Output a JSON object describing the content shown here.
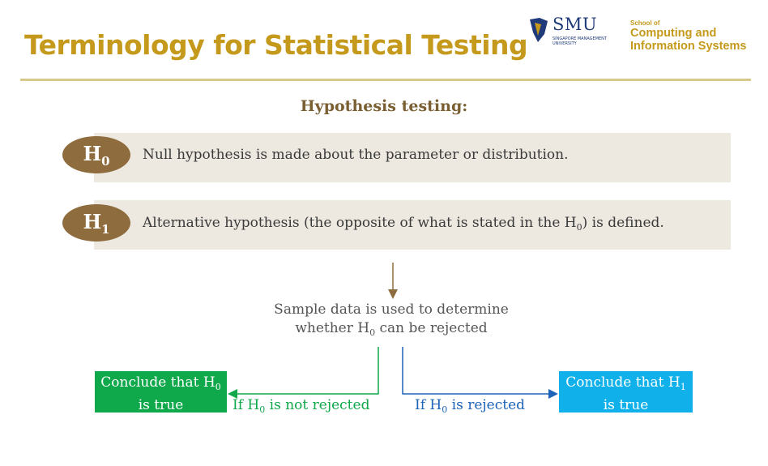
{
  "header": {
    "title": "Terminology for Statistical Testing",
    "logo_smu": "SMU",
    "logo_smu_sub1": "SINGAPORE MANAGEMENT",
    "logo_smu_sub2": "UNIVERSITY",
    "logo_school_small": "School of",
    "logo_school_line1": "Computing and",
    "logo_school_line2": "Information Systems"
  },
  "diagram": {
    "subtitle": "Hypothesis testing:",
    "h0": {
      "badge_main": "H",
      "badge_sub": "0",
      "text": "Null hypothesis is made about the parameter or distribution."
    },
    "h1": {
      "badge_main": "H",
      "badge_sub": "1",
      "text_pre": "Alternative hypothesis (the opposite of what is stated in the H",
      "text_sub": "0",
      "text_post": ") is defined."
    },
    "sample": {
      "line1": "Sample data is used to determine",
      "line2_pre": "whether H",
      "line2_sub": "0",
      "line2_post": " can be rejected"
    },
    "left_box": {
      "line1_pre": "Conclude that H",
      "line1_sub": "0",
      "line2": "is true"
    },
    "right_box": {
      "line1_pre": "Conclude that H",
      "line1_sub": "1",
      "line2": "is true"
    },
    "left_label": {
      "pre": "If H",
      "sub": "0",
      "post": " is not rejected"
    },
    "right_label": {
      "pre": "If H",
      "sub": "0",
      "post": " is rejected"
    }
  },
  "colors": {
    "gold": "#c59a1c",
    "brown": "#8f6c3d",
    "green": "#0fa84a",
    "blue": "#10b1ea",
    "dark_blue": "#1d63b8"
  }
}
